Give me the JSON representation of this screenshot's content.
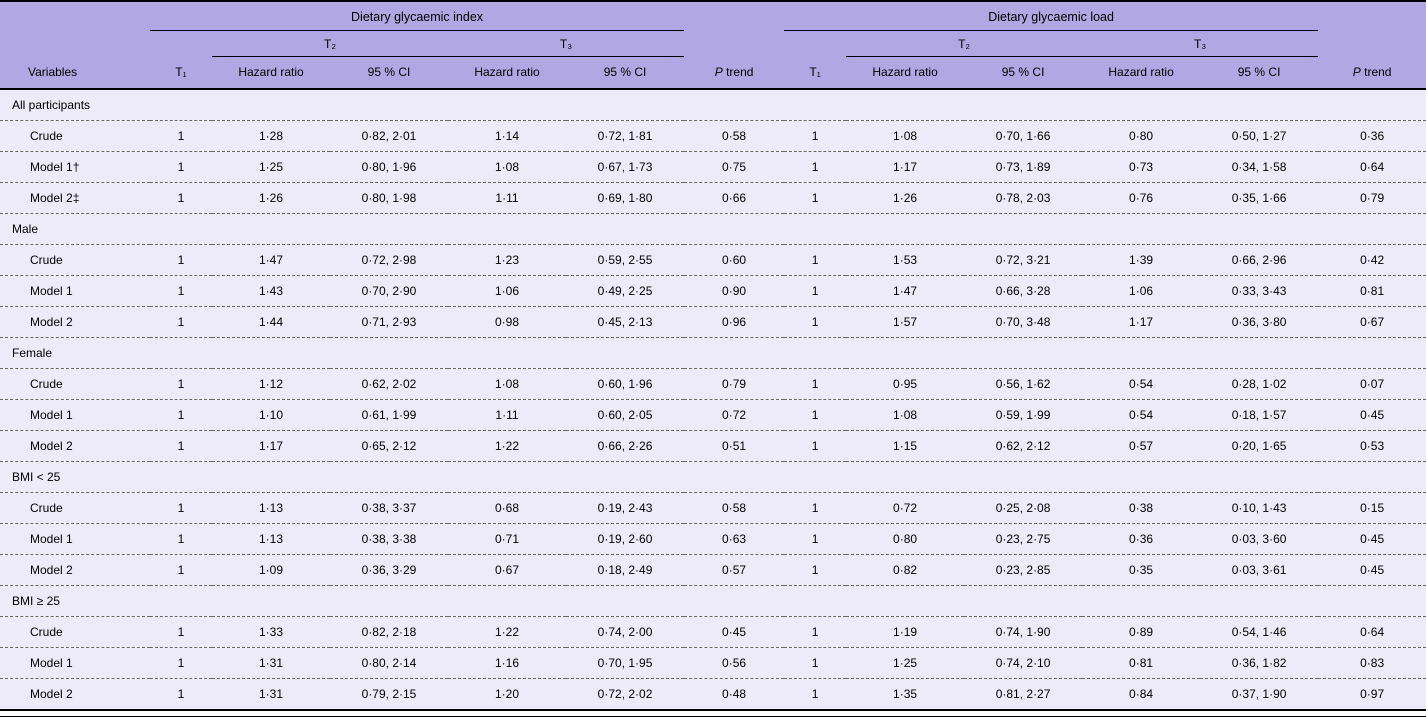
{
  "colors": {
    "header_bg": "#b1a7e3",
    "body_bg": "#edebf9",
    "rule": "#000000"
  },
  "table": {
    "header": {
      "groups": [
        "Dietary glycaemic index",
        "Dietary glycaemic load"
      ],
      "tertiles": [
        "T₂",
        "T₃",
        "T₂",
        "T₃"
      ],
      "variables": "Variables",
      "t1": "T₁",
      "hazard_ratio": "Hazard ratio",
      "ci": "95 % CI",
      "p_trend_italic": "P",
      "p_trend_rest": "trend"
    },
    "sections": [
      {
        "title": "All participants",
        "rows": [
          {
            "label": "Crude",
            "values": [
              "1",
              "1·28",
              "0·82, 2·01",
              "1·14",
              "0·72, 1·81",
              "0·58",
              "1",
              "1·08",
              "0·70, 1·66",
              "0·80",
              "0·50, 1·27",
              "0·36"
            ]
          },
          {
            "label": "Model 1†",
            "values": [
              "1",
              "1·25",
              "0·80, 1·96",
              "1·08",
              "0·67, 1·73",
              "0·75",
              "1",
              "1·17",
              "0·73, 1·89",
              "0·73",
              "0·34, 1·58",
              "0·64"
            ]
          },
          {
            "label": "Model 2‡",
            "values": [
              "1",
              "1·26",
              "0·80, 1·98",
              "1·11",
              "0·69, 1·80",
              "0·66",
              "1",
              "1·26",
              "0·78, 2·03",
              "0·76",
              "0·35, 1·66",
              "0·79"
            ]
          }
        ]
      },
      {
        "title": "Male",
        "rows": [
          {
            "label": "Crude",
            "values": [
              "1",
              "1·47",
              "0·72, 2·98",
              "1·23",
              "0·59, 2·55",
              "0·60",
              "1",
              "1·53",
              "0·72, 3·21",
              "1·39",
              "0·66, 2·96",
              "0·42"
            ]
          },
          {
            "label": "Model 1",
            "values": [
              "1",
              "1·43",
              "0·70, 2·90",
              "1·06",
              "0·49, 2·25",
              "0·90",
              "1",
              "1·47",
              "0·66, 3·28",
              "1·06",
              "0·33, 3·43",
              "0·81"
            ]
          },
          {
            "label": "Model 2",
            "values": [
              "1",
              "1·44",
              "0·71, 2·93",
              "0·98",
              "0·45, 2·13",
              "0·96",
              "1",
              "1·57",
              "0·70, 3·48",
              "1·17",
              "0·36, 3·80",
              "0·67"
            ]
          }
        ]
      },
      {
        "title": "Female",
        "rows": [
          {
            "label": "Crude",
            "values": [
              "1",
              "1·12",
              "0·62, 2·02",
              "1·08",
              "0·60, 1·96",
              "0·79",
              "1",
              "0·95",
              "0·56, 1·62",
              "0·54",
              "0·28, 1·02",
              "0·07"
            ]
          },
          {
            "label": "Model 1",
            "values": [
              "1",
              "1·10",
              "0·61, 1·99",
              "1·11",
              "0·60, 2·05",
              "0·72",
              "1",
              "1·08",
              "0·59, 1·99",
              "0·54",
              "0·18, 1·57",
              "0·45"
            ]
          },
          {
            "label": "Model 2",
            "values": [
              "1",
              "1·17",
              "0·65, 2·12",
              "1·22",
              "0·66, 2·26",
              "0·51",
              "1",
              "1·15",
              "0·62, 2·12",
              "0·57",
              "0·20, 1·65",
              "0·53"
            ]
          }
        ]
      },
      {
        "title": "BMI < 25",
        "rows": [
          {
            "label": "Crude",
            "values": [
              "1",
              "1·13",
              "0·38, 3·37",
              "0·68",
              "0·19, 2·43",
              "0·58",
              "1",
              "0·72",
              "0·25, 2·08",
              "0·38",
              "0·10, 1·43",
              "0·15"
            ]
          },
          {
            "label": "Model 1",
            "values": [
              "1",
              "1·13",
              "0·38, 3·38",
              "0·71",
              "0·19, 2·60",
              "0·63",
              "1",
              "0·80",
              "0·23, 2·75",
              "0·36",
              "0·03, 3·60",
              "0·45"
            ]
          },
          {
            "label": "Model 2",
            "values": [
              "1",
              "1·09",
              "0·36, 3·29",
              "0·67",
              "0·18, 2·49",
              "0·57",
              "1",
              "0·82",
              "0·23, 2·85",
              "0·35",
              "0·03, 3·61",
              "0·45"
            ]
          }
        ]
      },
      {
        "title": "BMI ≥ 25",
        "rows": [
          {
            "label": "Crude",
            "values": [
              "1",
              "1·33",
              "0·82, 2·18",
              "1·22",
              "0·74, 2·00",
              "0·45",
              "1",
              "1·19",
              "0·74, 1·90",
              "0·89",
              "0·54, 1·46",
              "0·64"
            ]
          },
          {
            "label": "Model 1",
            "values": [
              "1",
              "1·31",
              "0·80, 2·14",
              "1·16",
              "0·70, 1·95",
              "0·56",
              "1",
              "1·25",
              "0·74, 2·10",
              "0·81",
              "0·36, 1·82",
              "0·83"
            ]
          },
          {
            "label": "Model 2",
            "values": [
              "1",
              "1·31",
              "0·79, 2·15",
              "1·20",
              "0·72, 2·02",
              "0·48",
              "1",
              "1·35",
              "0·81, 2·27",
              "0·84",
              "0·37, 1·90",
              "0·97"
            ]
          }
        ]
      }
    ]
  }
}
